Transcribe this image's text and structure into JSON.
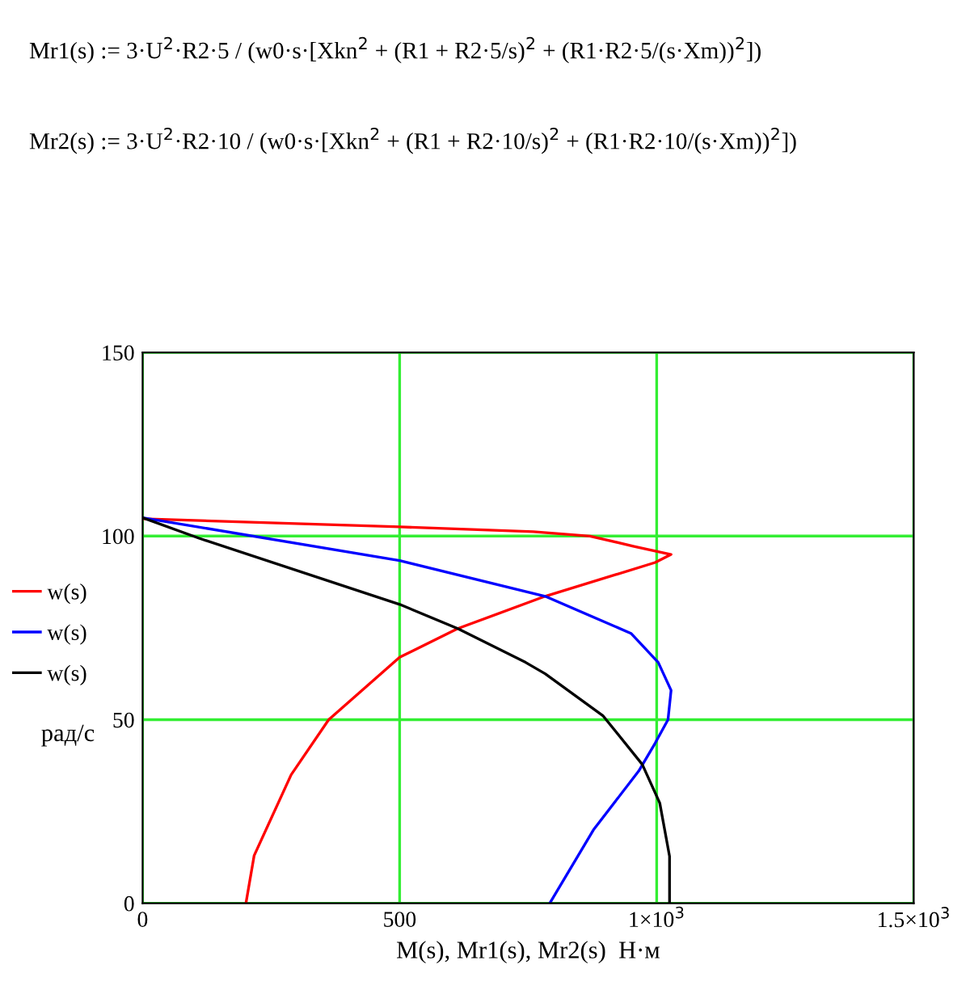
{
  "chart_data": {
    "type": "line",
    "annotations": [
      "Mr1(s) := 3·U$^{2}$·R2·5 / (w0·s·[Xkn$^{2}$ + (R1 + R2·5/s)$^{2}$ + (R1·R2·5/(s·Xm))$^{2}$])",
      "Mr2(s) := 3·U$^{2}$·R2·10 / (w0·s·[Xkn$^{2}$ + (R1 + R2·10/s)$^{2}$ + (R1·R2·10/(s·Xm))$^{2}$])"
    ],
    "xlabel": "M(s), Mr1(s), Mr2(s)  Н·м",
    "ylabel": "рад/с",
    "series": [
      {
        "name": "w(s)",
        "color": "#ff0000",
        "x": [
          0,
          500,
          760,
          870,
          956,
          1028,
          997,
          783,
          613,
          500,
          362,
          289,
          217,
          201
        ],
        "values": [
          104.7,
          102.5,
          101.2,
          100,
          97.2,
          95,
          92.8,
          83.6,
          74.8,
          67,
          50,
          35,
          13,
          0
        ]
      },
      {
        "name": "w(s)",
        "color": "#0000ff",
        "x": [
          0,
          500,
          783,
          950,
          1003,
          1028,
          1022,
          997,
          965,
          877,
          792
        ],
        "values": [
          105,
          93.3,
          83.6,
          73.5,
          65.6,
          58,
          50,
          43.6,
          36,
          20,
          0
        ]
      },
      {
        "name": "w(s)",
        "color": "#000000",
        "x": [
          0,
          110,
          500,
          613,
          745,
          783,
          896,
          972,
          1006,
          1025,
          1025
        ],
        "values": [
          105,
          99.4,
          81.4,
          74.8,
          65.6,
          62.5,
          51,
          37.8,
          27.3,
          12.8,
          0
        ]
      }
    ],
    "xlim": [
      0,
      1500
    ],
    "ylim": [
      0,
      150
    ],
    "xticks": [
      0,
      500,
      {
        "value": 1000,
        "label": "1×10$^{3}$"
      },
      {
        "value": 1500,
        "label": "1.5×10$^{3}$"
      }
    ],
    "yticks": [
      0,
      50,
      100,
      150
    ],
    "grid": true,
    "legend": "left",
    "marker": "none",
    "line_style": "solid"
  }
}
